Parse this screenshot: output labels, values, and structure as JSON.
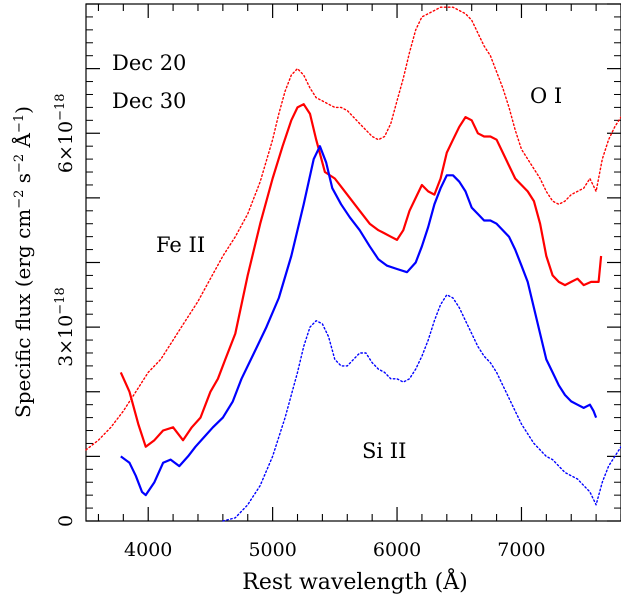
{
  "chart_data": {
    "type": "line",
    "title": "",
    "xlabel": "Rest wavelength (Å)",
    "ylabel_main": "Specific flux (erg cm",
    "ylabel_exp1": "−2",
    "ylabel_mid": " s",
    "ylabel_exp2": "−2",
    "ylabel_unit": " Å",
    "ylabel_exp3": "−1",
    "ylabel_close": ")",
    "xlim": [
      3500,
      7800
    ],
    "ylim": [
      0,
      8e-18
    ],
    "x_ticks_major": [
      4000,
      5000,
      6000,
      7000
    ],
    "x_tick_labels": [
      "4000",
      "5000",
      "6000",
      "7000"
    ],
    "y_ticks_major": [
      0,
      3e-18,
      6e-18
    ],
    "y_tick_labels": [
      {
        "mant": "0",
        "exp": ""
      },
      {
        "mant": "3×10",
        "exp": "−18"
      },
      {
        "mant": "6×10",
        "exp": "−18"
      }
    ],
    "legend": [
      {
        "name": "Dec 20",
        "color": "#ff0000"
      },
      {
        "name": "Dec 30",
        "color": "#0000ff"
      }
    ],
    "annotations": [
      "Fe II",
      "O I",
      "Si II"
    ],
    "series": [
      {
        "name": "Dec 20",
        "color": "#ff0000",
        "style": "solid",
        "x": [
          3780,
          3850,
          3920,
          3980,
          4050,
          4120,
          4200,
          4280,
          4350,
          4420,
          4500,
          4560,
          4620,
          4700,
          4800,
          4900,
          5000,
          5080,
          5150,
          5200,
          5250,
          5300,
          5350,
          5420,
          5500,
          5560,
          5620,
          5700,
          5780,
          5850,
          5900,
          5950,
          6000,
          6050,
          6100,
          6150,
          6200,
          6250,
          6300,
          6350,
          6400,
          6450,
          6500,
          6550,
          6600,
          6650,
          6700,
          6750,
          6800,
          6850,
          6900,
          6950,
          7000,
          7050,
          7100,
          7150,
          7200,
          7250,
          7300,
          7350,
          7400,
          7450,
          7500,
          7560,
          7620,
          7640
        ],
        "y": [
          2.3e-18,
          2e-18,
          1.5e-18,
          1.15e-18,
          1.25e-18,
          1.4e-18,
          1.45e-18,
          1.25e-18,
          1.45e-18,
          1.6e-18,
          2e-18,
          2.2e-18,
          2.5e-18,
          2.9e-18,
          3.8e-18,
          4.6e-18,
          5.3e-18,
          5.8e-18,
          6.2e-18,
          6.4e-18,
          6.45e-18,
          6.3e-18,
          5.9e-18,
          5.4e-18,
          5.3e-18,
          5.15e-18,
          5e-18,
          4.8e-18,
          4.6e-18,
          4.5e-18,
          4.45e-18,
          4.4e-18,
          4.35e-18,
          4.5e-18,
          4.8e-18,
          5e-18,
          5.2e-18,
          5.1e-18,
          5.05e-18,
          5.3e-18,
          5.7e-18,
          5.9e-18,
          6.1e-18,
          6.25e-18,
          6.2e-18,
          6e-18,
          5.95e-18,
          5.95e-18,
          5.9e-18,
          5.7e-18,
          5.5e-18,
          5.3e-18,
          5.2e-18,
          5.1e-18,
          4.95e-18,
          4.6e-18,
          4.1e-18,
          3.8e-18,
          3.7e-18,
          3.65e-18,
          3.7e-18,
          3.75e-18,
          3.65e-18,
          3.7e-18,
          3.7e-18,
          4.1e-18
        ]
      },
      {
        "name": "Dec 20 (dotted)",
        "color": "#ff0000",
        "style": "dotted",
        "x": [
          3500,
          3600,
          3700,
          3800,
          3900,
          4000,
          4100,
          4200,
          4300,
          4400,
          4500,
          4600,
          4700,
          4800,
          4900,
          5000,
          5050,
          5100,
          5150,
          5200,
          5250,
          5300,
          5350,
          5400,
          5450,
          5500,
          5550,
          5600,
          5650,
          5700,
          5750,
          5800,
          5850,
          5900,
          5950,
          6000,
          6050,
          6100,
          6150,
          6200,
          6250,
          6300,
          6350,
          6400,
          6450,
          6500,
          6550,
          6600,
          6650,
          6700,
          6750,
          6800,
          6850,
          6900,
          6950,
          7000,
          7050,
          7100,
          7150,
          7200,
          7250,
          7300,
          7350,
          7400,
          7450,
          7500,
          7550,
          7600,
          7650,
          7700,
          7750,
          7800
        ],
        "y": [
          1.1e-18,
          1.25e-18,
          1.45e-18,
          1.7e-18,
          2e-18,
          2.3e-18,
          2.5e-18,
          2.8e-18,
          3.1e-18,
          3.4e-18,
          3.75e-18,
          4.1e-18,
          4.4e-18,
          4.75e-18,
          5.25e-18,
          5.9e-18,
          6.3e-18,
          6.65e-18,
          6.9e-18,
          7e-18,
          6.9e-18,
          6.7e-18,
          6.55e-18,
          6.5e-18,
          6.45e-18,
          6.4e-18,
          6.4e-18,
          6.35e-18,
          6.25e-18,
          6.15e-18,
          6.05e-18,
          5.95e-18,
          5.9e-18,
          5.95e-18,
          6.15e-18,
          6.5e-18,
          6.85e-18,
          7.25e-18,
          7.6e-18,
          7.8e-18,
          7.85e-18,
          7.9e-18,
          7.95e-18,
          7.95e-18,
          7.95e-18,
          7.9e-18,
          7.85e-18,
          7.75e-18,
          7.55e-18,
          7.35e-18,
          7.2e-18,
          6.95e-18,
          6.7e-18,
          6.4e-18,
          6.05e-18,
          5.75e-18,
          5.6e-18,
          5.45e-18,
          5.3e-18,
          5.1e-18,
          4.95e-18,
          4.9e-18,
          4.95e-18,
          5.05e-18,
          5.1e-18,
          5.15e-18,
          5.3e-18,
          5.1e-18,
          5.6e-18,
          5.9e-18,
          6.1e-18,
          6.25e-18
        ]
      },
      {
        "name": "Dec 30",
        "color": "#0000ff",
        "style": "solid",
        "x": [
          3780,
          3850,
          3900,
          3950,
          3980,
          4050,
          4120,
          4180,
          4250,
          4320,
          4380,
          4450,
          4520,
          4600,
          4680,
          4750,
          4850,
          4950,
          5050,
          5150,
          5250,
          5330,
          5380,
          5430,
          5480,
          5550,
          5620,
          5700,
          5780,
          5850,
          5920,
          6000,
          6080,
          6150,
          6200,
          6250,
          6300,
          6350,
          6400,
          6450,
          6500,
          6550,
          6600,
          6650,
          6700,
          6750,
          6800,
          6850,
          6900,
          6950,
          7000,
          7050,
          7100,
          7150,
          7200,
          7250,
          7300,
          7350,
          7400,
          7450,
          7500,
          7550,
          7580,
          7600
        ],
        "y": [
          1e-18,
          9e-19,
          7e-19,
          4.5e-19,
          4e-19,
          6e-19,
          9e-19,
          9.5e-19,
          8.5e-19,
          1e-18,
          1.15e-18,
          1.3e-18,
          1.45e-18,
          1.6e-18,
          1.85e-18,
          2.2e-18,
          2.6e-18,
          3e-18,
          3.45e-18,
          4.1e-18,
          4.9e-18,
          5.6e-18,
          5.8e-18,
          5.55e-18,
          5.15e-18,
          4.9e-18,
          4.7e-18,
          4.5e-18,
          4.25e-18,
          4.05e-18,
          3.95e-18,
          3.9e-18,
          3.85e-18,
          4e-18,
          4.25e-18,
          4.55e-18,
          4.9e-18,
          5.15e-18,
          5.35e-18,
          5.35e-18,
          5.25e-18,
          5.1e-18,
          4.85e-18,
          4.75e-18,
          4.65e-18,
          4.65e-18,
          4.6e-18,
          4.5e-18,
          4.4e-18,
          4.2e-18,
          3.95e-18,
          3.7e-18,
          3.3e-18,
          2.9e-18,
          2.5e-18,
          2.3e-18,
          2.1e-18,
          1.95e-18,
          1.85e-18,
          1.8e-18,
          1.75e-18,
          1.8e-18,
          1.7e-18,
          1.6e-18
        ]
      },
      {
        "name": "Dec 30 (dotted)",
        "color": "#0000ff",
        "style": "dotted",
        "x": [
          4600,
          4700,
          4800,
          4900,
          5000,
          5100,
          5200,
          5250,
          5300,
          5350,
          5400,
          5450,
          5500,
          5550,
          5600,
          5650,
          5700,
          5750,
          5800,
          5850,
          5900,
          5950,
          6000,
          6050,
          6100,
          6150,
          6200,
          6250,
          6300,
          6350,
          6400,
          6450,
          6500,
          6550,
          6600,
          6650,
          6700,
          6750,
          6800,
          6850,
          6900,
          6950,
          7000,
          7050,
          7100,
          7150,
          7200,
          7250,
          7300,
          7350,
          7400,
          7450,
          7500,
          7550,
          7600,
          7650,
          7700,
          7750,
          7800
        ],
        "y": [
          0.0,
          5e-20,
          2.5e-19,
          5.5e-19,
          1e-18,
          1.6e-18,
          2.3e-18,
          2.7e-18,
          3e-18,
          3.1e-18,
          3.05e-18,
          2.85e-18,
          2.5e-18,
          2.4e-18,
          2.4e-18,
          2.5e-18,
          2.6e-18,
          2.6e-18,
          2.45e-18,
          2.35e-18,
          2.3e-18,
          2.2e-18,
          2.2e-18,
          2.15e-18,
          2.2e-18,
          2.35e-18,
          2.55e-18,
          2.8e-18,
          3.1e-18,
          3.35e-18,
          3.5e-18,
          3.45e-18,
          3.3e-18,
          3.1e-18,
          2.9e-18,
          2.7e-18,
          2.55e-18,
          2.45e-18,
          2.3e-18,
          2.1e-18,
          1.9e-18,
          1.7e-18,
          1.5e-18,
          1.35e-18,
          1.2e-18,
          1.1e-18,
          1e-18,
          9.5e-19,
          8.5e-19,
          7.5e-19,
          7e-19,
          6.5e-19,
          5.5e-19,
          4.5e-19,
          2.5e-19,
          6e-19,
          8.5e-19,
          1e-18,
          1.15e-18
        ]
      }
    ]
  }
}
